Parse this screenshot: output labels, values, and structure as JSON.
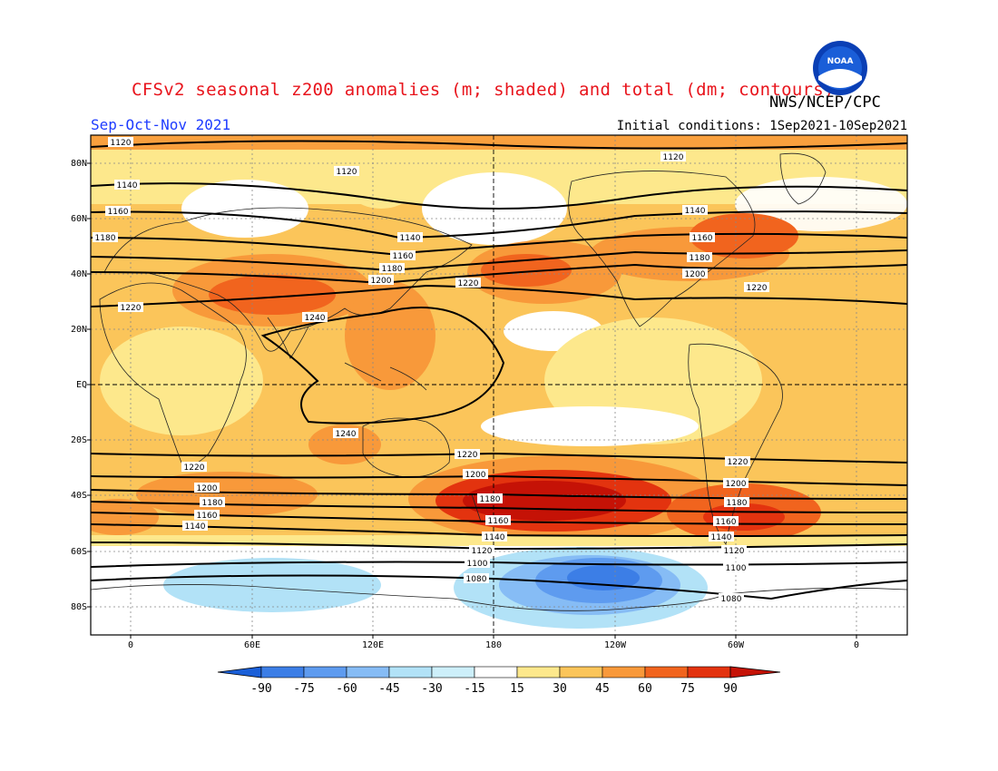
{
  "header": {
    "title": "CFSv2 seasonal z200 anomalies (m; shaded) and total (dm; contours)",
    "agency": "NWS/NCEP/CPC",
    "season": "Sep-Oct-Nov 2021",
    "initial_conditions": "Initial conditions: 1Sep2021-10Sep2021",
    "logo_text": "NOAA"
  },
  "axes": {
    "lat_labels": [
      "80N",
      "60N",
      "40N",
      "20N",
      "EQ",
      "20S",
      "40S",
      "60S",
      "80S"
    ],
    "lon_labels": [
      "0",
      "60E",
      "120E",
      "180",
      "120W",
      "60W",
      "0"
    ]
  },
  "colorbar": {
    "labels": [
      "-90",
      "-75",
      "-60",
      "-45",
      "-30",
      "-15",
      "15",
      "30",
      "45",
      "60",
      "75",
      "90"
    ],
    "colors": [
      "#1a5fd8",
      "#3c7ee6",
      "#5e9bef",
      "#86bcf5",
      "#b2e2f7",
      "#ffffff",
      "#fde88c",
      "#fbc55a",
      "#f8993a",
      "#f1641e",
      "#e3330f",
      "#c51206"
    ]
  },
  "contour_labels": {
    "c1120": "1120",
    "c1140": "1140",
    "c1160": "1160",
    "c1180": "1180",
    "c1200": "1200",
    "c1220": "1220",
    "c1240": "1240",
    "c1100": "1100",
    "c1080": "1080"
  }
}
